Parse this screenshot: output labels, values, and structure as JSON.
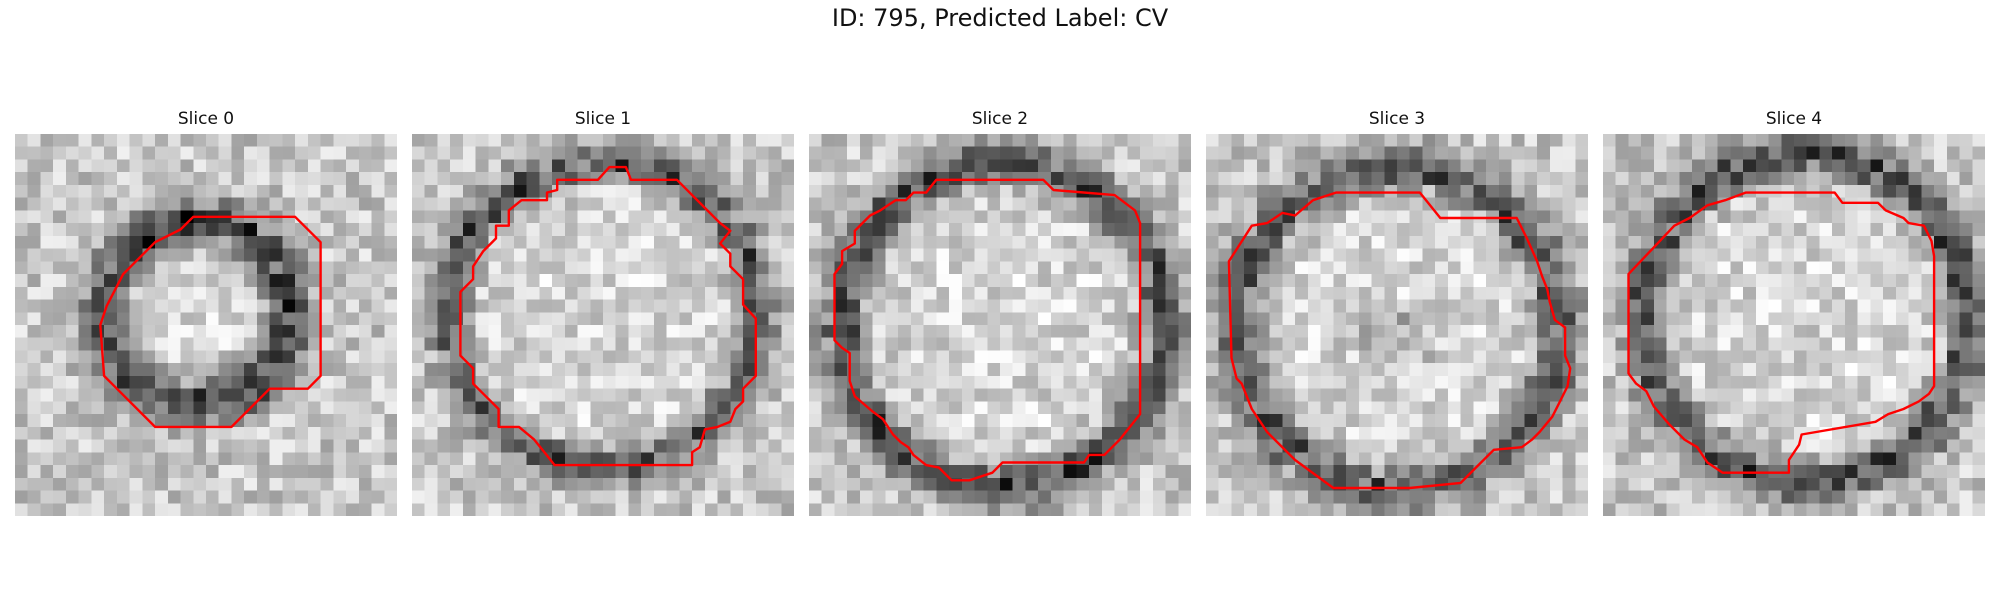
{
  "figure": {
    "title": "ID: 795, Predicted Label: CV"
  },
  "panels": [
    {
      "title": "Slice 0"
    },
    {
      "title": "Slice 1"
    },
    {
      "title": "Slice 2"
    },
    {
      "title": "Slice 3"
    },
    {
      "title": "Slice 4"
    }
  ],
  "colors": {
    "contour": "#ff0000",
    "background": "#ffffff"
  }
}
